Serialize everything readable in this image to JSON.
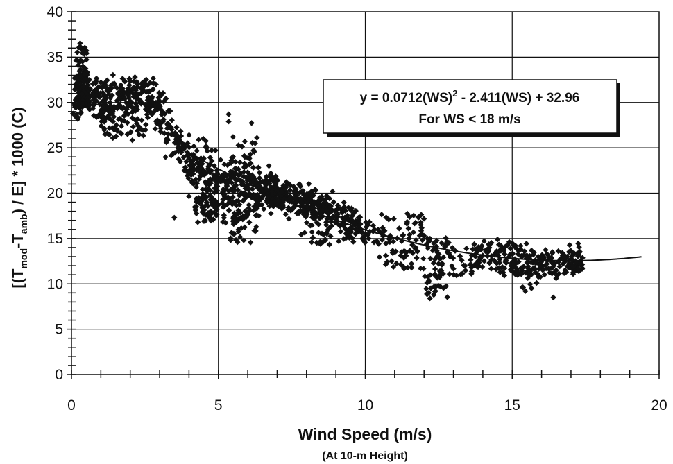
{
  "chart_data": {
    "type": "scatter",
    "title": "",
    "xlabel": "Wind Speed (m/s)",
    "xlabel_sub": "(At 10-m Height)",
    "ylabel_parts": [
      "[(T",
      "mod",
      "-T",
      "amb",
      ") / E] * 1000  (C)"
    ],
    "xlim": [
      0,
      20
    ],
    "ylim": [
      0,
      40
    ],
    "x_ticks": [
      0,
      5,
      10,
      15,
      20
    ],
    "y_ticks": [
      0,
      5,
      10,
      15,
      20,
      25,
      30,
      35,
      40
    ],
    "grid": true,
    "annotation": {
      "line1_a": "y = 0.0712(WS)",
      "line1_sup": "2",
      "line1_b": " - 2.411(WS) + 32.96",
      "line2": "For WS < 18 m/s"
    },
    "fit": {
      "a": 0.0712,
      "b": -2.411,
      "c": 32.96,
      "x_range": [
        4,
        19.4
      ]
    },
    "clusters": [
      {
        "x0": 0.1,
        "x1": 0.6,
        "y0": 29.5,
        "y1": 33.5,
        "yc": null,
        "s": 1.6,
        "n": 110
      },
      {
        "x0": 0.15,
        "x1": 0.55,
        "y0": 33,
        "y1": 36.2,
        "yc": null,
        "s": 1.0,
        "n": 25
      },
      {
        "x0": 0.05,
        "x1": 0.4,
        "y0": 28.3,
        "y1": 30,
        "yc": null,
        "s": 0.5,
        "n": 15
      },
      {
        "x0": 0.6,
        "x1": 2.8,
        "y0": 28.5,
        "y1": 32.5,
        "yc": null,
        "s": 1.3,
        "n": 220
      },
      {
        "x0": 1.0,
        "x1": 1.3,
        "y0": 25.8,
        "y1": 28.5,
        "yc": null,
        "s": 0.6,
        "n": 14
      },
      {
        "x0": 1.3,
        "x1": 2.6,
        "y0": 26,
        "y1": 28.5,
        "yc": null,
        "s": 1.0,
        "n": 35
      },
      {
        "x0": 2.8,
        "x1": 4.2,
        "y0": null,
        "y1": null,
        "yc": [
          30,
          22.5
        ],
        "s": 2.6,
        "n": 110
      },
      {
        "x0": 4.0,
        "x1": 5.3,
        "y0": null,
        "y1": null,
        "yc": [
          23,
          20.5
        ],
        "s": 3.4,
        "n": 150
      },
      {
        "x0": 4.2,
        "x1": 5.0,
        "y0": 17.8,
        "y1": 19.5,
        "yc": null,
        "s": 1.2,
        "n": 30
      },
      {
        "x0": 4.5,
        "x1": 5.2,
        "y0": 16.5,
        "y1": 18,
        "yc": null,
        "s": 0.8,
        "n": 12
      },
      {
        "x0": 5.3,
        "x1": 6.4,
        "y0": null,
        "y1": null,
        "yc": [
          21,
          20
        ],
        "s": 5.0,
        "n": 170
      },
      {
        "x0": 5.4,
        "x1": 5.9,
        "y0": 14.5,
        "y1": 17.5,
        "yc": null,
        "s": 0.8,
        "n": 12
      },
      {
        "x0": 6.4,
        "x1": 8.8,
        "y0": null,
        "y1": null,
        "yc": [
          20.5,
          18
        ],
        "s": 1.9,
        "n": 300
      },
      {
        "x0": 8.8,
        "x1": 10.0,
        "y0": null,
        "y1": null,
        "yc": [
          18,
          16
        ],
        "s": 1.8,
        "n": 80
      },
      {
        "x0": 7.8,
        "x1": 11.0,
        "y0": 14.5,
        "y1": 16,
        "yc": null,
        "s": 0.7,
        "n": 45
      },
      {
        "x0": 10.0,
        "x1": 12.0,
        "y0": 13,
        "y1": 17.5,
        "yc": null,
        "s": 1.6,
        "n": 70
      },
      {
        "x0": 10.5,
        "x1": 12.0,
        "y0": 11.5,
        "y1": 13,
        "yc": null,
        "s": 0.5,
        "n": 14
      },
      {
        "x0": 12.0,
        "x1": 12.8,
        "y0": 8.5,
        "y1": 15,
        "yc": null,
        "s": 1.5,
        "n": 60
      },
      {
        "x0": 12.8,
        "x1": 13.8,
        "y0": 10.5,
        "y1": 15,
        "yc": null,
        "s": 1.2,
        "n": 35
      },
      {
        "x0": 13.8,
        "x1": 15.5,
        "y0": 11,
        "y1": 14.5,
        "yc": null,
        "s": 1.3,
        "n": 110
      },
      {
        "x0": 15.5,
        "x1": 16.6,
        "y0": 10.8,
        "y1": 13.5,
        "yc": null,
        "s": 1.1,
        "n": 70
      },
      {
        "x0": 16.6,
        "x1": 17.4,
        "y0": 11.2,
        "y1": 14,
        "yc": null,
        "s": 1.2,
        "n": 70
      },
      {
        "x0": 15.3,
        "x1": 16.0,
        "y0": 8.9,
        "y1": 10,
        "yc": null,
        "s": 0.4,
        "n": 5
      }
    ],
    "singles": [
      [
        3.5,
        17.3
      ],
      [
        5.35,
        28.7
      ],
      [
        5.35,
        27.9
      ],
      [
        5.5,
        26.2
      ],
      [
        5.9,
        25.7
      ],
      [
        16.4,
        8.5
      ],
      [
        15.45,
        9.2
      ],
      [
        12.6,
        14.5
      ],
      [
        12.0,
        15.3
      ],
      [
        14.5,
        14.9
      ],
      [
        5.65,
        14.6
      ],
      [
        10.9,
        12.5
      ],
      [
        12.1,
        8.9
      ],
      [
        12.2,
        8.4
      ],
      [
        9.3,
        17.3
      ],
      [
        6.25,
        25.5
      ],
      [
        6.1,
        23.3
      ],
      [
        4.3,
        16.8
      ]
    ]
  }
}
